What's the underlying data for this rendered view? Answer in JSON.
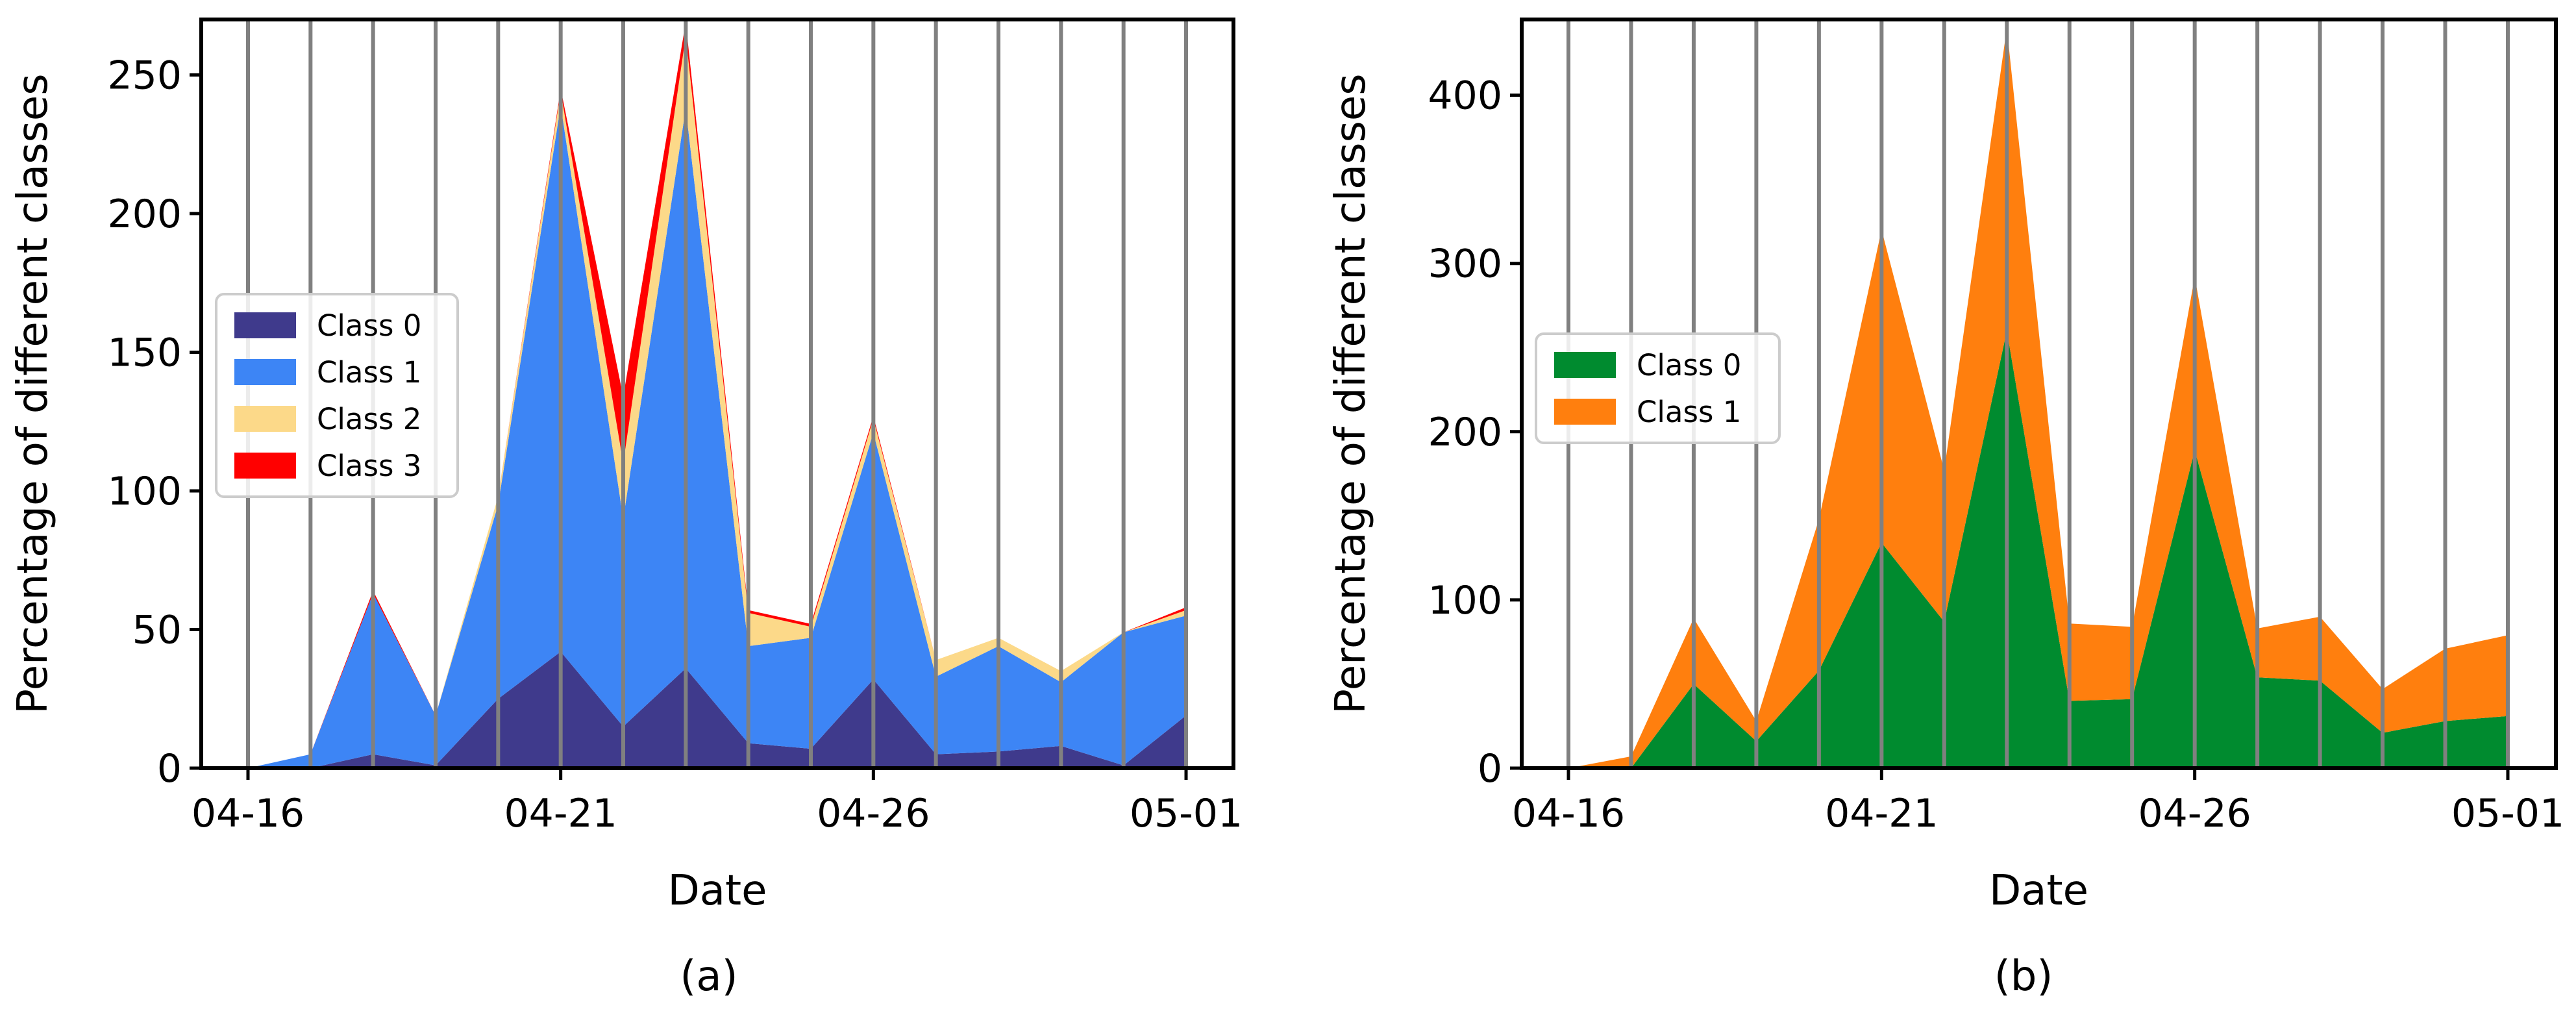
{
  "chart_data": [
    {
      "type": "area",
      "stacked": true,
      "panel_label": "(a)",
      "x": [
        "04-16",
        "04-17",
        "04-18",
        "04-19",
        "04-20",
        "04-21",
        "04-22",
        "04-23",
        "04-24",
        "04-25",
        "04-26",
        "04-27",
        "04-28",
        "04-29",
        "04-30",
        "05-01"
      ],
      "xticks": [
        "04-16",
        "04-21",
        "04-26",
        "05-01"
      ],
      "xlabel": "Date",
      "ylabel": "Percentage of different classes",
      "ylim": [
        0,
        270
      ],
      "yticks": [
        0,
        50,
        100,
        150,
        200,
        250
      ],
      "grid": "vertical gridlines at every date",
      "legend_position": "center-left",
      "series": [
        {
          "name": "Class 0",
          "color": "#3f3a8c",
          "values": [
            0,
            0,
            5,
            1,
            25,
            42,
            15,
            36,
            9,
            7,
            32,
            5,
            6,
            8,
            1,
            19
          ]
        },
        {
          "name": "Class 1",
          "color": "#3d85f5",
          "values": [
            0,
            5,
            58,
            18,
            70,
            197,
            75,
            202,
            35,
            40,
            89,
            28,
            38,
            23,
            48,
            36
          ]
        },
        {
          "name": "Class 2",
          "color": "#fcd989",
          "values": [
            0,
            0,
            0,
            0,
            3,
            5,
            20,
            26,
            12,
            4,
            5,
            6,
            3,
            4,
            0,
            2
          ]
        },
        {
          "name": "Class 3",
          "color": "#ff0000",
          "values": [
            0,
            0,
            1,
            0,
            0,
            1,
            24,
            5,
            1,
            1,
            1,
            0,
            0,
            0,
            0,
            1
          ]
        }
      ]
    },
    {
      "type": "area",
      "stacked": true,
      "panel_label": "(b)",
      "x": [
        "04-16",
        "04-17",
        "04-18",
        "04-19",
        "04-20",
        "04-21",
        "04-22",
        "04-23",
        "04-24",
        "04-25",
        "04-26",
        "04-27",
        "04-28",
        "04-29",
        "04-30",
        "05-01"
      ],
      "xticks": [
        "04-16",
        "04-21",
        "04-26",
        "05-01"
      ],
      "xlabel": "Date",
      "ylabel": "Percentage of different classes",
      "ylim": [
        0,
        445
      ],
      "yticks": [
        0,
        100,
        200,
        300,
        400
      ],
      "grid": "vertical gridlines at every date",
      "legend_position": "center-left",
      "series": [
        {
          "name": "Class 0",
          "color": "#008b2f",
          "values": [
            0,
            0,
            50,
            16,
            58,
            134,
            87,
            260,
            40,
            41,
            189,
            54,
            52,
            21,
            28,
            31
          ]
        },
        {
          "name": "Class 1",
          "color": "#ff7f0e",
          "values": [
            0,
            7,
            39,
            12,
            90,
            186,
            90,
            180,
            46,
            43,
            103,
            29,
            38,
            26,
            43,
            48
          ]
        }
      ]
    }
  ]
}
